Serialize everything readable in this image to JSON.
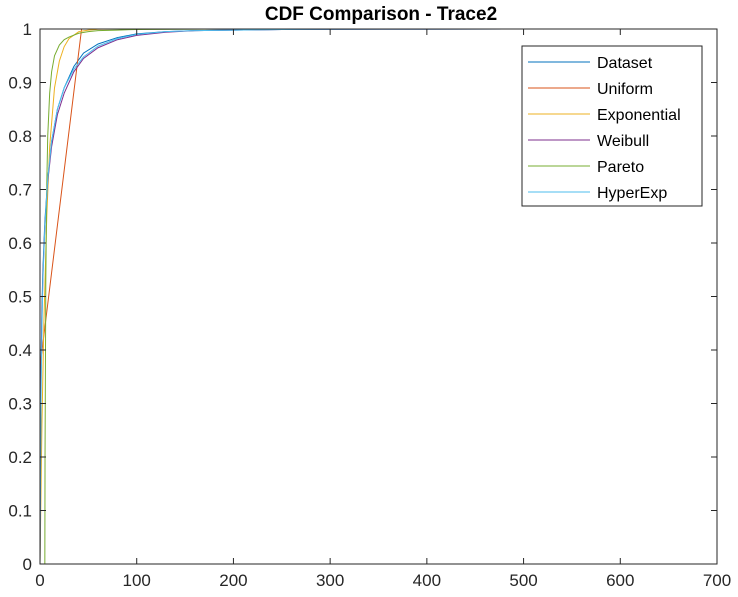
{
  "chart_data": {
    "type": "line",
    "title": "CDF Comparison - Trace2",
    "xlabel": "",
    "ylabel": "",
    "xlim": [
      0,
      700
    ],
    "ylim": [
      0,
      1
    ],
    "xticks": [
      "0",
      "100",
      "200",
      "300",
      "400",
      "500",
      "600",
      "700"
    ],
    "yticks": [
      "0",
      "0.1",
      "0.2",
      "0.3",
      "0.4",
      "0.5",
      "0.6",
      "0.7",
      "0.8",
      "0.9",
      "1"
    ],
    "grid": false,
    "legend_position": "top-right",
    "series": [
      {
        "name": "Dataset",
        "color": "#0072BD",
        "x": [
          0,
          1,
          2,
          3,
          5,
          8,
          12,
          18,
          25,
          35,
          45,
          60,
          80,
          100,
          130,
          160,
          200,
          250,
          300,
          400,
          500,
          635
        ],
        "y": [
          0,
          0.36,
          0.48,
          0.55,
          0.64,
          0.72,
          0.79,
          0.85,
          0.89,
          0.93,
          0.955,
          0.972,
          0.984,
          0.991,
          0.995,
          0.997,
          0.998,
          0.999,
          0.9995,
          0.9998,
          1.0,
          1.0
        ]
      },
      {
        "name": "Uniform",
        "color": "#D95319",
        "x": [
          0,
          0.1,
          43,
          635
        ],
        "y": [
          0.35,
          0.37,
          1.0,
          1.0
        ]
      },
      {
        "name": "Exponential",
        "color": "#EDB120",
        "x": [
          0,
          2,
          4,
          7,
          10,
          15,
          20,
          25,
          30,
          40,
          50,
          60,
          80,
          100,
          150,
          200,
          300,
          460
        ],
        "y": [
          0,
          0.26,
          0.45,
          0.65,
          0.78,
          0.89,
          0.94,
          0.967,
          0.982,
          0.995,
          0.998,
          0.9995,
          1.0,
          1.0,
          1.0,
          1.0,
          1.0,
          1.0
        ]
      },
      {
        "name": "Weibull",
        "color": "#7E2F8E",
        "x": [
          0,
          1,
          2,
          3,
          5,
          8,
          12,
          18,
          25,
          35,
          45,
          60,
          80,
          100,
          130,
          160,
          200,
          250,
          300,
          400,
          500,
          635
        ],
        "y": [
          0,
          0.34,
          0.46,
          0.54,
          0.63,
          0.715,
          0.78,
          0.84,
          0.88,
          0.92,
          0.945,
          0.965,
          0.98,
          0.988,
          0.994,
          0.997,
          0.998,
          0.999,
          0.9995,
          0.9998,
          1.0,
          1.0
        ]
      },
      {
        "name": "Pareto",
        "color": "#77AC30",
        "x": [
          5,
          5.2,
          6,
          7,
          8,
          10,
          12,
          15,
          20,
          25,
          30,
          40,
          50,
          60,
          80,
          100,
          150,
          200,
          300,
          460
        ],
        "y": [
          0,
          0.2,
          0.53,
          0.71,
          0.8,
          0.88,
          0.92,
          0.95,
          0.97,
          0.98,
          0.985,
          0.992,
          0.995,
          0.997,
          0.998,
          0.999,
          0.9995,
          1.0,
          1.0,
          1.0
        ]
      },
      {
        "name": "HyperExp",
        "color": "#4DBEEE",
        "x": [
          0,
          1,
          2,
          3,
          5,
          8,
          12,
          18,
          25,
          35,
          45,
          60,
          80,
          100,
          130,
          160,
          200,
          250,
          300,
          400,
          500,
          635
        ],
        "y": [
          0,
          0.3,
          0.44,
          0.53,
          0.63,
          0.72,
          0.79,
          0.85,
          0.89,
          0.925,
          0.948,
          0.968,
          0.982,
          0.99,
          0.995,
          0.997,
          0.998,
          0.999,
          0.9995,
          0.9998,
          1.0,
          1.0
        ]
      }
    ]
  }
}
